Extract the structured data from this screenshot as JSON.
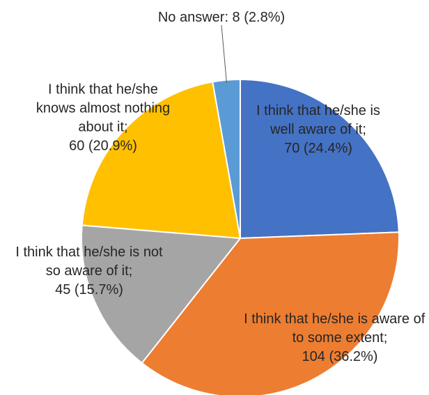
{
  "chart_data": {
    "type": "pie",
    "title": "",
    "slices": [
      {
        "label_lines": [
          "I think that he/she is",
          "well aware of it;",
          "70 (24.4%)"
        ],
        "value": 70,
        "percent": 24.4,
        "color": "#4472C4"
      },
      {
        "label_lines": [
          "I think that he/she is aware of it",
          "to some extent;",
          "104 (36.2%)"
        ],
        "value": 104,
        "percent": 36.2,
        "color": "#ED7D31"
      },
      {
        "label_lines": [
          "I think that he/she is not",
          "so aware of it;",
          "45 (15.7%)"
        ],
        "value": 45,
        "percent": 15.7,
        "color": "#A5A5A5"
      },
      {
        "label_lines": [
          "I think that he/she",
          "knows almost nothing",
          "about it;",
          "60 (20.9%)"
        ],
        "value": 60,
        "percent": 20.9,
        "color": "#FFC000"
      },
      {
        "label_lines": [
          "No answer: 8 (2.8%)"
        ],
        "value": 8,
        "percent": 2.8,
        "color": "#5B9BD5"
      }
    ]
  }
}
